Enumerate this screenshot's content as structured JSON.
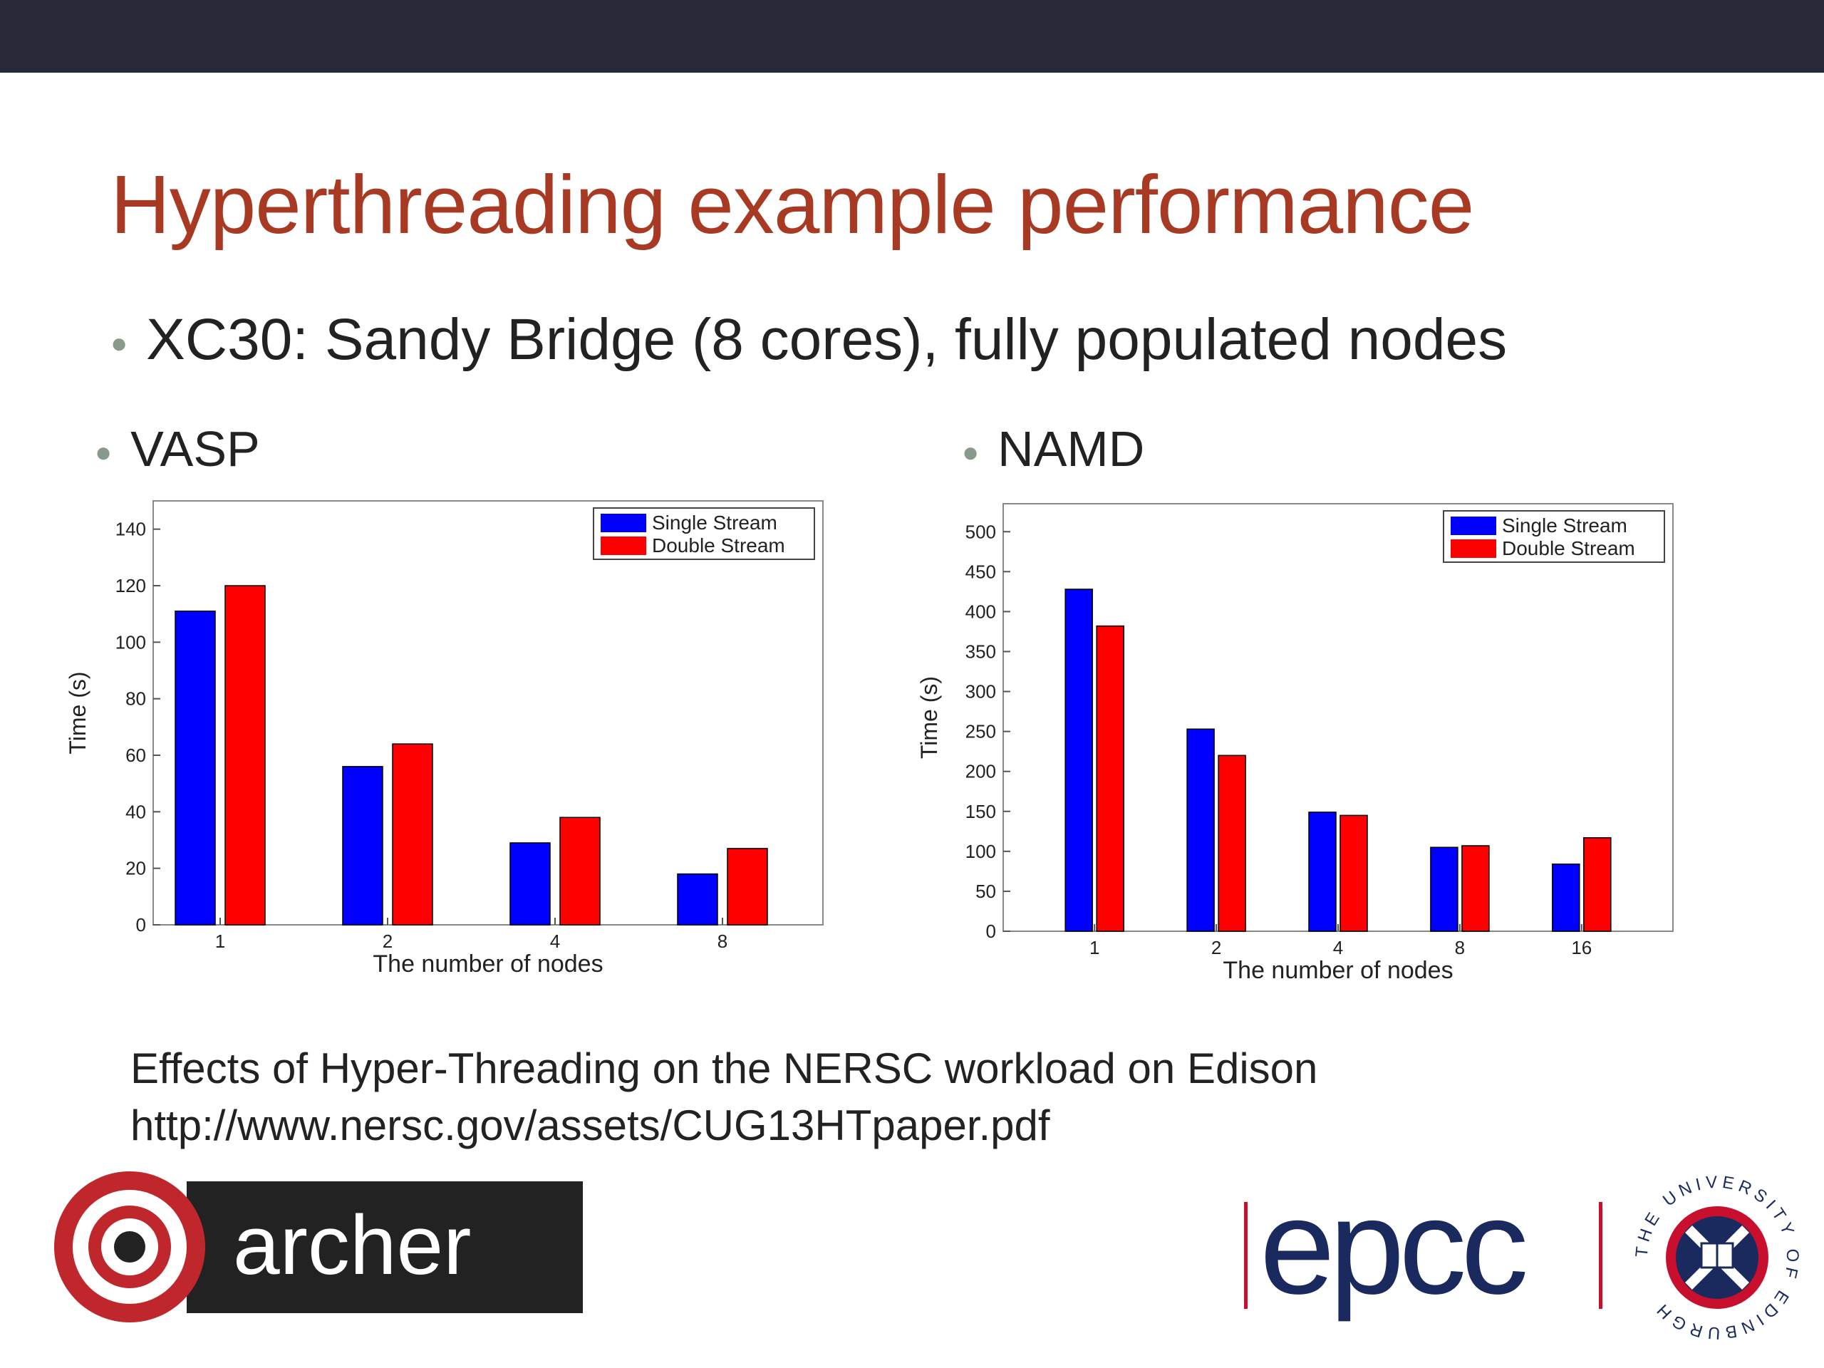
{
  "slide": {
    "title": "Hyperthreading example performance",
    "bullet_main": "XC30: Sandy Bridge (8 cores), fully populated nodes",
    "bullet_left": "VASP",
    "bullet_right": "NAMD",
    "caption_line1": "Effects of Hyper-Threading on the NERSC workload on Edison",
    "caption_line2": "http://www.nersc.gov/assets/CUG13HTpaper.pdf"
  },
  "logos": {
    "archer_text": "archer",
    "epcc_text": "epcc",
    "university_text": "THE UNIVERSITY OF EDINBURGH"
  },
  "colors": {
    "title": "#a83a24",
    "topbar": "#272936",
    "single": "#0000ff",
    "double": "#ff0000",
    "archer_red": "#c0272d",
    "epcc_blue": "#1b2a5e",
    "epcc_red": "#c8102e"
  },
  "chart_data": [
    {
      "type": "bar",
      "categories": [
        "1",
        "2",
        "4",
        "8"
      ],
      "series": [
        {
          "name": "Single Stream",
          "values": [
            111,
            56,
            29,
            18
          ]
        },
        {
          "name": "Double Stream",
          "values": [
            120,
            64,
            38,
            27
          ]
        }
      ],
      "xlabel": "The number of nodes",
      "ylabel": "Time (s)",
      "ylim": [
        0,
        150
      ],
      "yticks": [
        0,
        20,
        40,
        60,
        80,
        100,
        120,
        140
      ],
      "legend": "top-right",
      "grid": false
    },
    {
      "type": "bar",
      "categories": [
        "1",
        "2",
        "4",
        "8",
        "16"
      ],
      "series": [
        {
          "name": "Single Stream",
          "values": [
            428,
            253,
            149,
            105,
            84
          ]
        },
        {
          "name": "Double Stream",
          "values": [
            382,
            220,
            145,
            107,
            117
          ]
        }
      ],
      "xlabel": "The number of nodes",
      "ylabel": "Time (s)",
      "ylim": [
        0,
        535
      ],
      "yticks": [
        0,
        50,
        100,
        150,
        200,
        250,
        300,
        350,
        400,
        450,
        500
      ],
      "legend": "top-right",
      "grid": false
    }
  ]
}
